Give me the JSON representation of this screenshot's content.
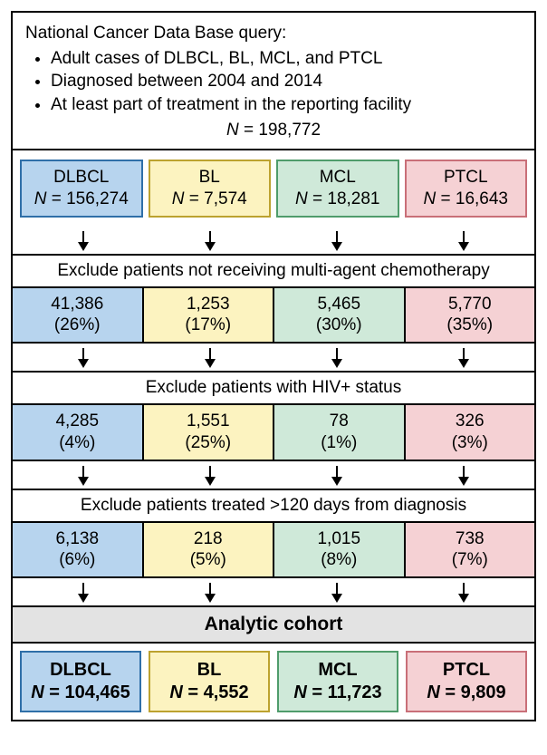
{
  "colors": {
    "blue_fill": "#b7d4ee",
    "blue_border": "#2f6fa8",
    "yellow_fill": "#fcf3c0",
    "yellow_border": "#bca22f",
    "green_fill": "#cfe9d9",
    "green_border": "#4f9c6b",
    "pink_fill": "#f5d1d4",
    "pink_border": "#c96f78",
    "gray_fill": "#e3e3e3"
  },
  "header": {
    "title": "National Cancer Data Base query:",
    "bullets": [
      "Adult cases of DLBCL, BL, MCL, and PTCL",
      "Diagnosed between 2004 and 2014",
      "At least part of treatment in the reporting facility"
    ],
    "n_label": "N",
    "n_eq": "= 198,772"
  },
  "groups": [
    "DLBCL",
    "BL",
    "MCL",
    "PTCL"
  ],
  "initial_n": [
    "156,274",
    "7,574",
    "18,281",
    "16,643"
  ],
  "steps": [
    {
      "label": "Exclude patients not receiving multi-agent chemotherapy",
      "n": [
        "41,386",
        "1,253",
        "5,465",
        "5,770"
      ],
      "pct": [
        "(26%)",
        "(17%)",
        "(30%)",
        "(35%)"
      ]
    },
    {
      "label": "Exclude patients with HIV+ status",
      "n": [
        "4,285",
        "1,551",
        "78",
        "326"
      ],
      "pct": [
        "(4%)",
        "(25%)",
        "(1%)",
        "(3%)"
      ]
    },
    {
      "label": "Exclude patients treated >120 days from diagnosis",
      "n": [
        "6,138",
        "218",
        "1,015",
        "738"
      ],
      "pct": [
        "(6%)",
        "(5%)",
        "(8%)",
        "(7%)"
      ]
    }
  ],
  "final": {
    "label": "Analytic cohort",
    "n": [
      "104,465",
      "4,552",
      "11,723",
      "9,809"
    ]
  },
  "n_prefix": "N",
  "n_equals": " = "
}
